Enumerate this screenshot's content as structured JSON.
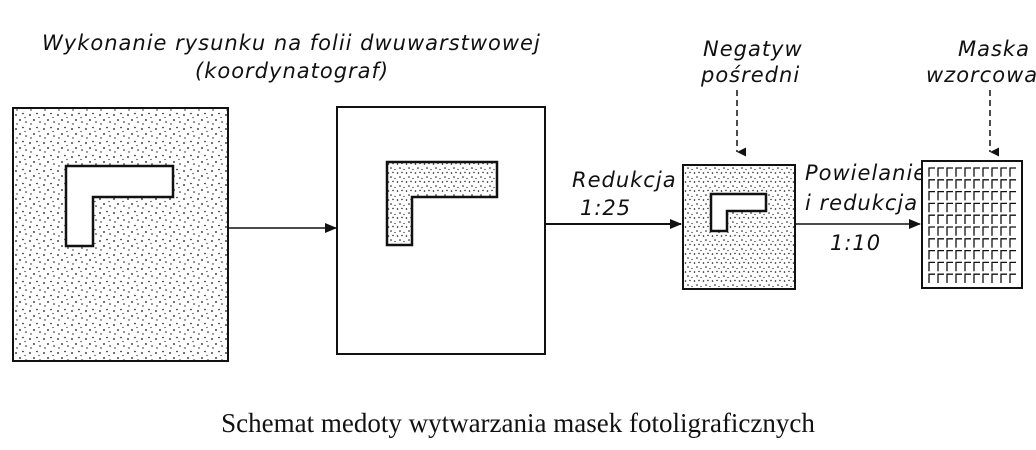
{
  "labels": {
    "top_line1": "Wykonanie rysunku na folii dwuwarstwowej",
    "top_line2": "(koordynatograf)",
    "negatyw_line1": "Negatyw",
    "negatyw_line2": "pośredni",
    "maska_line1": "Maska",
    "maska_line2": "wzorcowa",
    "redukcja_line1": "Redukcja",
    "redukcja_line2": "1:25",
    "powielanie_line1": "Powielanie",
    "powielanie_line2": "i redukcja",
    "powielanie_line3": "1:10"
  },
  "caption": "Schemat medoty wytwarzania masek fotoligraficznych",
  "colors": {
    "ink": "#111111",
    "paper": "#ffffff"
  }
}
